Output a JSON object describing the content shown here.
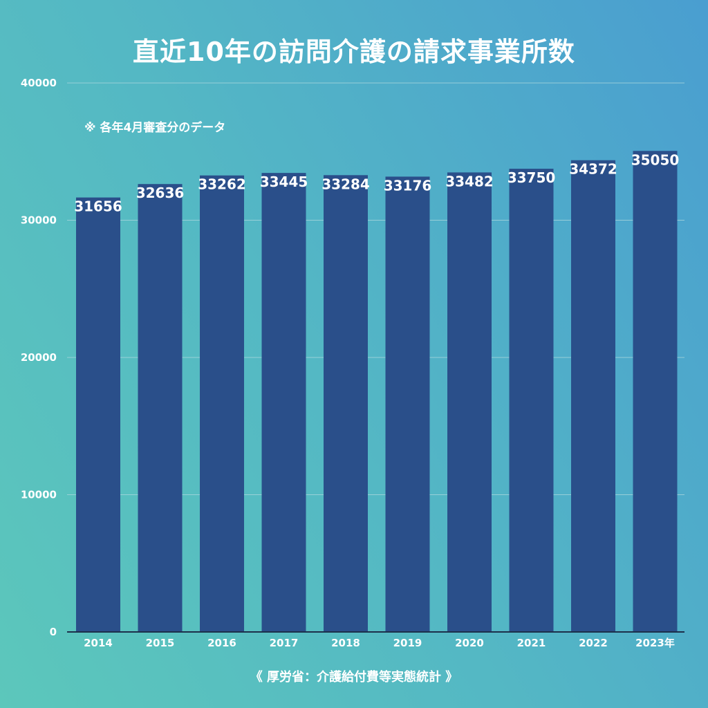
{
  "colors": {
    "bar": "#2a4f8a",
    "gridline": "#a9d6dc",
    "axis": "#1c2f4a",
    "text": "#ffffff"
  },
  "chart_data": {
    "type": "bar",
    "title": "直近10年の訪問介護の請求事業所数",
    "note": "※ 各年4月審査分のデータ",
    "source": "《 厚労省：介護給付費等実態統計 》",
    "xlabel": "",
    "ylabel": "",
    "categories": [
      "2014",
      "2015",
      "2016",
      "2017",
      "2018",
      "2019",
      "2020",
      "2021",
      "2022",
      "2023年"
    ],
    "values": [
      31656,
      32636,
      33262,
      33445,
      33284,
      33176,
      33482,
      33750,
      34372,
      35050
    ],
    "data_labels": [
      "31656",
      "32636",
      "33262",
      "33445",
      "33284",
      "33176",
      "33482",
      "33750",
      "34372",
      "35050"
    ],
    "ylim": [
      0,
      40000
    ],
    "yticks": [
      0,
      10000,
      20000,
      30000,
      40000
    ],
    "ytick_labels": [
      "0",
      "10000",
      "20000",
      "30000",
      "40000"
    ],
    "grid": true,
    "legend": "none"
  }
}
